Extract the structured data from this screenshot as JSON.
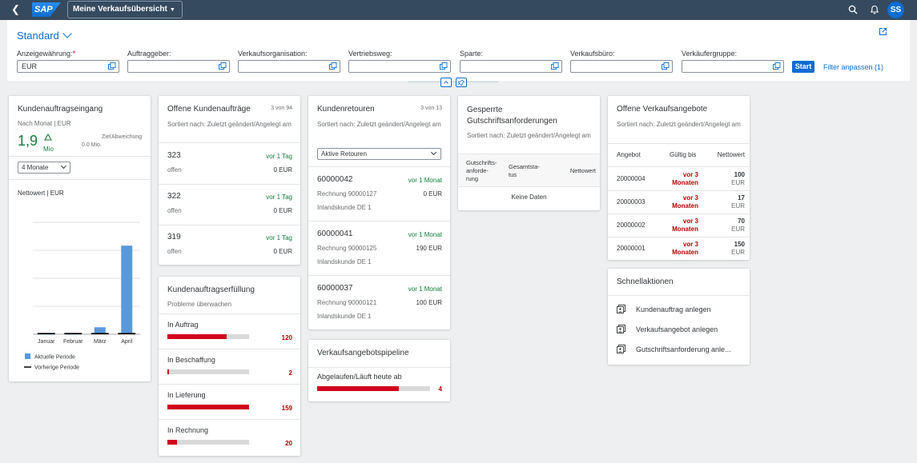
{
  "shell": {
    "logo": "SAP",
    "app_title": "Meine Verkaufsübersicht",
    "user_initials": "SS"
  },
  "filterbar": {
    "variant": "Standard",
    "fields": [
      {
        "label": "Anzeigewährung:",
        "required": "*",
        "value": "EUR"
      },
      {
        "label": "Auftraggeber:",
        "value": ""
      },
      {
        "label": "Verkaufsorganisation:",
        "value": ""
      },
      {
        "label": "Vertriebsweg:",
        "value": ""
      },
      {
        "label": "Sparte:",
        "value": ""
      },
      {
        "label": "Verkaufsbüro:",
        "value": ""
      },
      {
        "label": "Verkäufergruppe:",
        "value": ""
      }
    ],
    "start_label": "Start",
    "adapt_label": "Filter anpassen (1)"
  },
  "kae": {
    "title": "Kundenauftragseingang",
    "subtitle": "Nach Monat | EUR",
    "kpi_value": "1,9",
    "kpi_unit": "Mio",
    "target_label": "Ziel",
    "target_value": "0.0 Mio.",
    "deviation_label": "Abweichung",
    "period_select": "4 Monate",
    "chart_label": "Nettowert | EUR",
    "chart_data": {
      "type": "bar",
      "categories": [
        "Januar",
        "Februar",
        "März",
        "April"
      ],
      "series": [
        {
          "name": "Aktuelle Periode",
          "values": [
            0.01,
            0.01,
            0.15,
            1.9
          ],
          "color": "#5899da"
        },
        {
          "name": "Vorherige Periode",
          "values": [
            0,
            0,
            0,
            0
          ],
          "color": "#000000"
        }
      ],
      "ylim": [
        0,
        2.4
      ],
      "grid": true,
      "legend": "bottom-left"
    }
  },
  "oka": {
    "title": "Offene Kundenaufträge",
    "count": "3 von 94",
    "subtitle": "Sortiert nach: Zuletzt geändert/Angelegt am",
    "rows": [
      {
        "id": "323",
        "when": "vor 1 Tag",
        "status": "offen",
        "amount": "0 EUR"
      },
      {
        "id": "322",
        "when": "vor 1 Tag",
        "status": "offen",
        "amount": "0 EUR"
      },
      {
        "id": "319",
        "when": "vor 1 Tag",
        "status": "offen",
        "amount": "0 EUR"
      }
    ]
  },
  "kaf": {
    "title": "Kundenauftragserfüllung",
    "subtitle": "Probleme überwachen",
    "rows": [
      {
        "label": "In Auftrag",
        "value": "120",
        "fraction": 0.73
      },
      {
        "label": "In Beschaffung",
        "value": "2",
        "fraction": 0.02
      },
      {
        "label": "In Lieferung",
        "value": "159",
        "fraction": 1.0
      },
      {
        "label": "In Rechnung",
        "value": "20",
        "fraction": 0.12
      }
    ]
  },
  "kr": {
    "title": "Kundenretouren",
    "count": "3 von 13",
    "subtitle": "Sortiert nach: Zuletzt geändert/Angelegt am",
    "select": "Aktive Retouren",
    "rows": [
      {
        "id": "60000042",
        "when": "vor 1 Monat",
        "invoice": "Rechnung 90000127",
        "amount": "0 EUR",
        "customer": "Inlandskunde DE 1"
      },
      {
        "id": "60000041",
        "when": "vor 1 Monat",
        "invoice": "Rechnung 90000125",
        "amount": "190 EUR",
        "customer": "Inlandskunde DE 1"
      },
      {
        "id": "60000037",
        "when": "vor 1 Monat",
        "invoice": "Rechnung 90000121",
        "amount": "100 EUR",
        "customer": "Inlandskunde DE 1"
      }
    ]
  },
  "vap": {
    "title": "Verkaufsangebotspipeline",
    "row": {
      "label": "Abgelaufen/Läuft heute ab",
      "value": "4",
      "fraction": 1.0
    }
  },
  "gga": {
    "title_line1": "Gesperrte",
    "title_line2": "Gutschriftsanforderungen",
    "subtitle": "Sortiert nach: Zuletzt geändert/Angelegt am",
    "col1_l1": "Gutschrifts-",
    "col1_l2": "anforde-",
    "col1_l3": "rung",
    "col2_l1": "Gesamtsta-",
    "col2_l2": "tus",
    "col3": "Nettowert",
    "no_data": "Keine Daten"
  },
  "ova": {
    "title": "Offene Verkaufsangebote",
    "subtitle": "Sortiert nach: Zuletzt geändert/Angelegt am",
    "col_offer": "Angebot",
    "col_valid": "Gültig bis",
    "col_net": "Nettowert",
    "rows": [
      {
        "id": "20000004",
        "valid_l1": "vor 3",
        "valid_l2": "Monaten",
        "net": "100",
        "cur": "EUR"
      },
      {
        "id": "20000003",
        "valid_l1": "vor 3",
        "valid_l2": "Monaten",
        "net": "17",
        "cur": "EUR"
      },
      {
        "id": "20000002",
        "valid_l1": "vor 3",
        "valid_l2": "Monaten",
        "net": "70",
        "cur": "EUR"
      },
      {
        "id": "20000001",
        "valid_l1": "vor 3",
        "valid_l2": "Monaten",
        "net": "150",
        "cur": "EUR"
      }
    ]
  },
  "qa": {
    "title": "Schnellaktionen",
    "items": [
      "Kundenauftrag anlegen",
      "Verkaufsangebot anlegen",
      "Gutschriftsanforderung anle..."
    ]
  }
}
